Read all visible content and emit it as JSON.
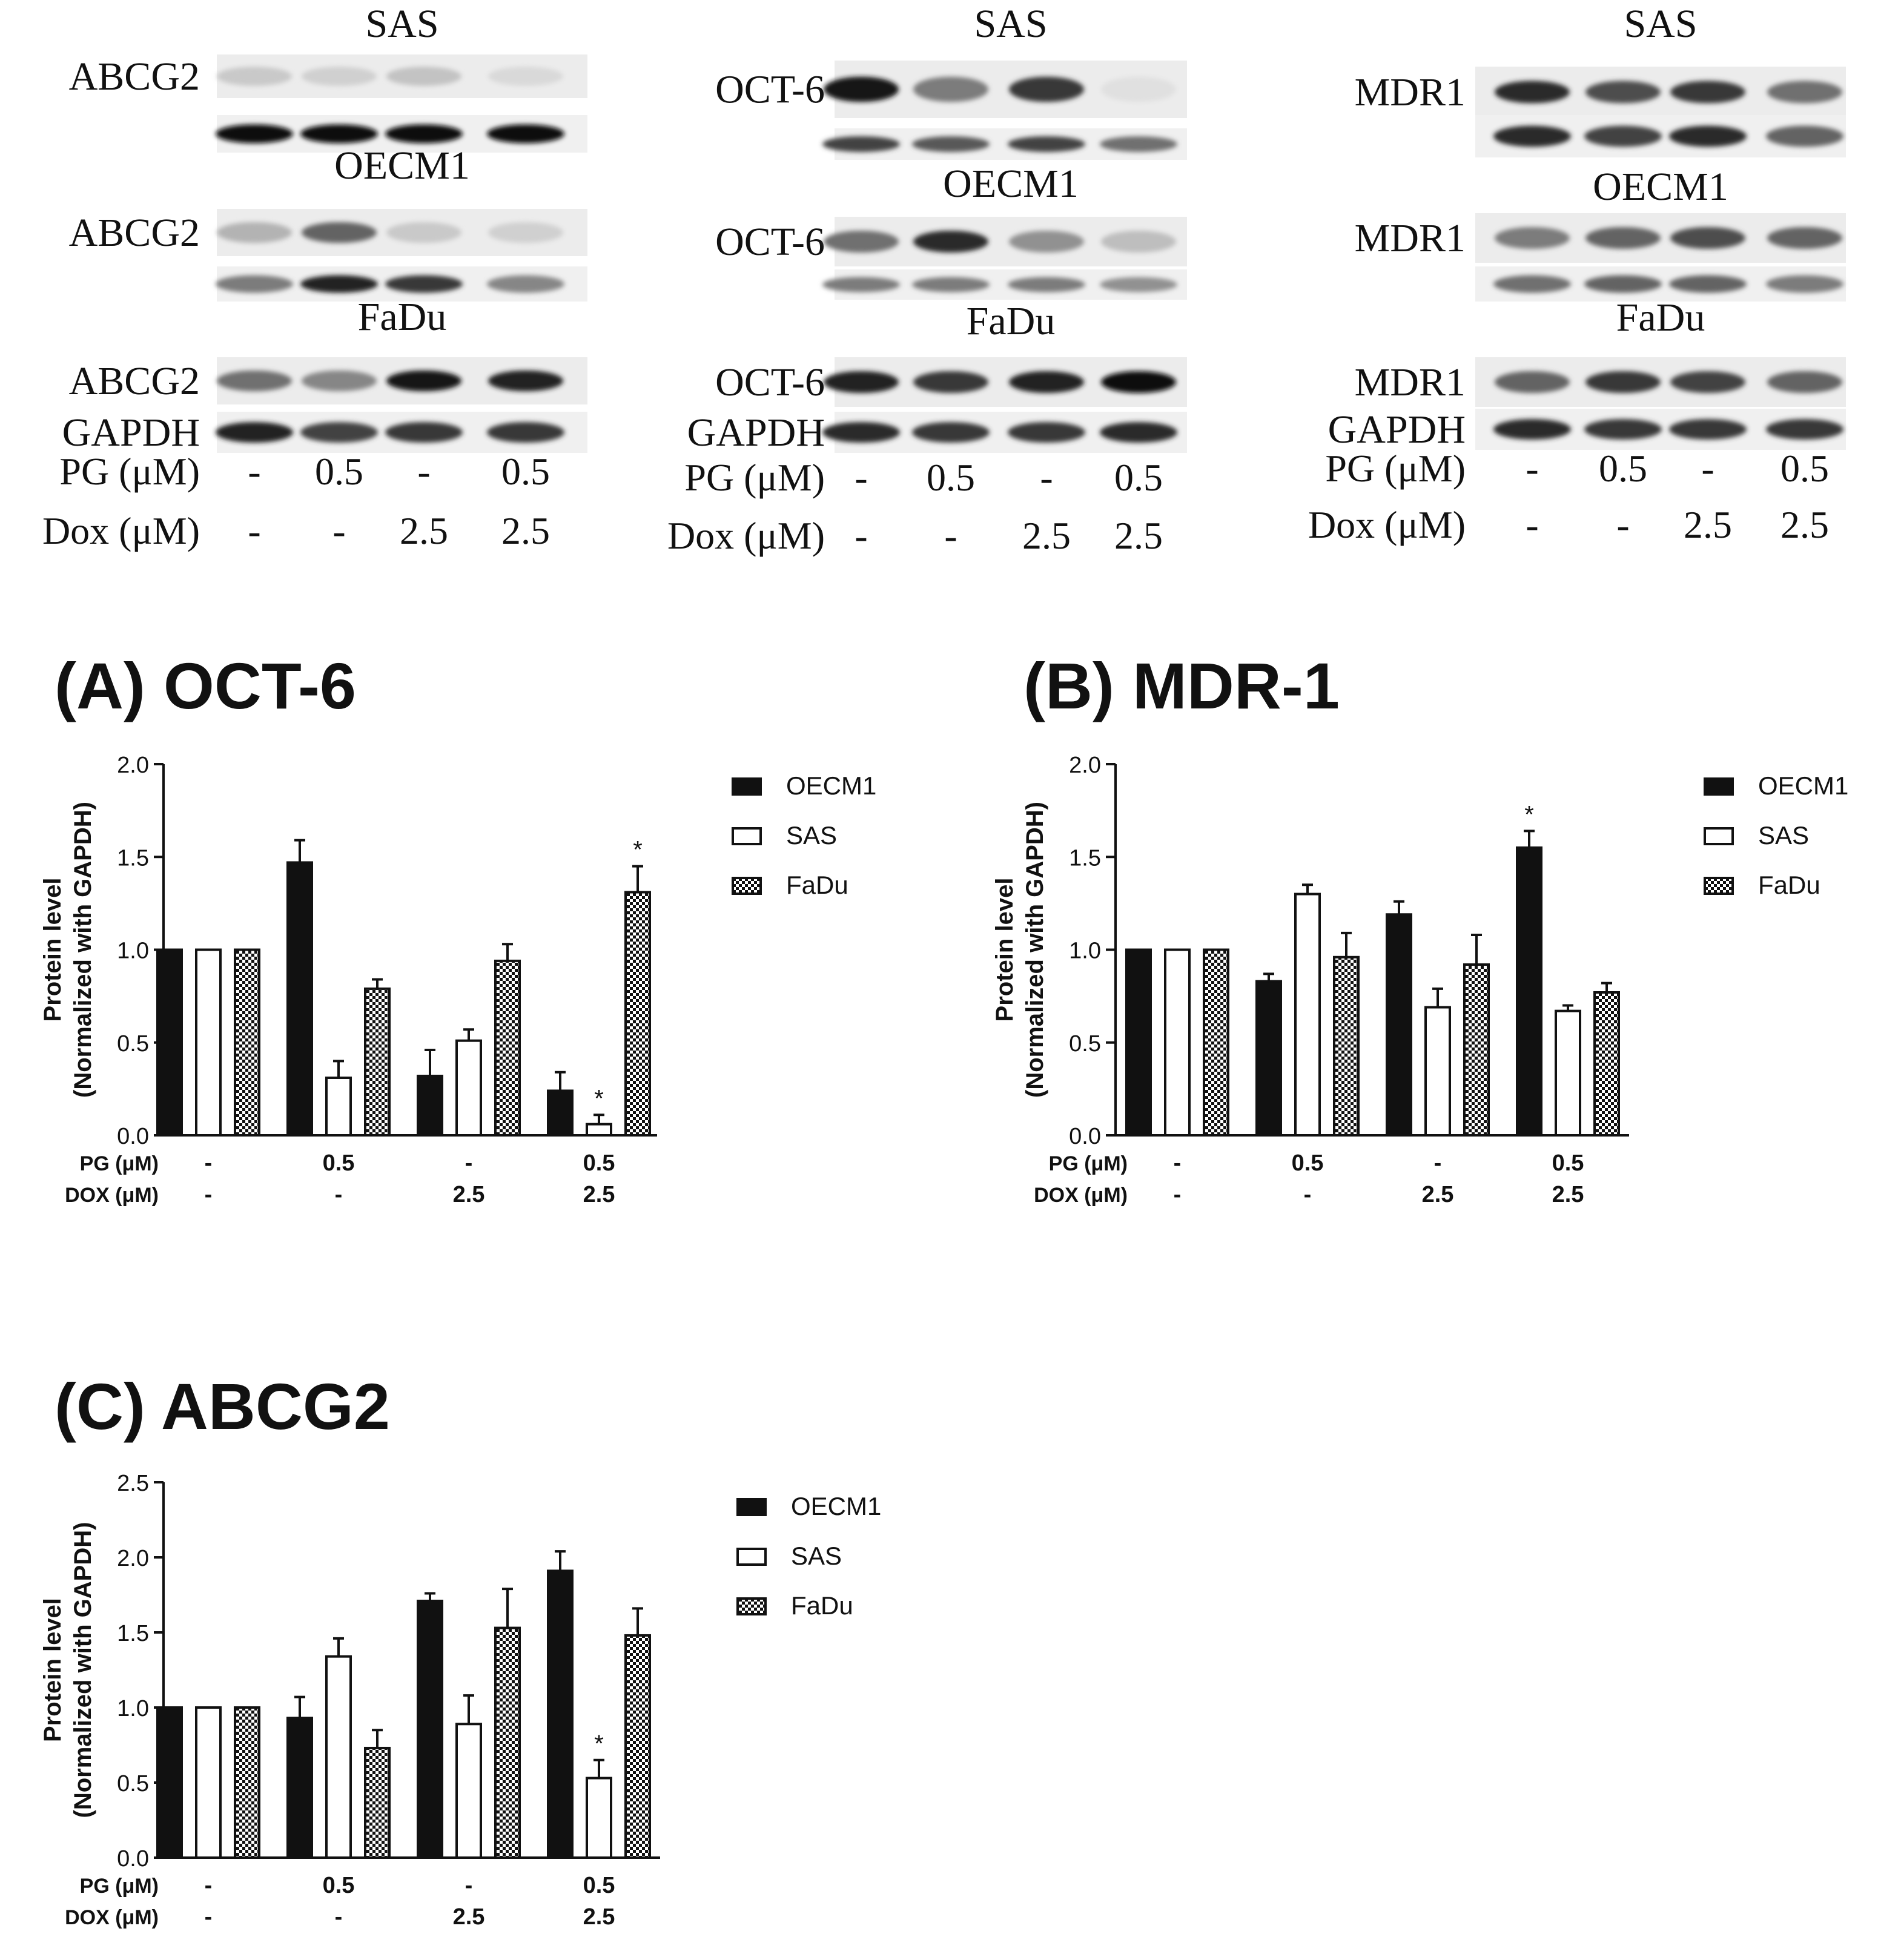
{
  "blots": [
    {
      "panels": [
        {
          "cell_line": "SAS",
          "protein": "ABCG2",
          "bands": [
            0.15,
            0.12,
            0.18,
            0.08
          ],
          "loading": [
            1.0,
            1.0,
            1.0,
            1.0
          ]
        },
        {
          "cell_line": "OECM1",
          "protein": "ABCG2",
          "bands": [
            0.25,
            0.6,
            0.15,
            0.12
          ],
          "loading": [
            0.5,
            0.9,
            0.8,
            0.45
          ]
        },
        {
          "cell_line": "FaDu",
          "protein": "ABCG2",
          "bands": [
            0.55,
            0.45,
            0.95,
            0.9
          ],
          "loading": [
            0.9,
            0.75,
            0.8,
            0.8
          ]
        }
      ],
      "loading_label": "GAPDH"
    },
    {
      "panels": [
        {
          "cell_line": "SAS",
          "protein": "OCT-6",
          "bands": [
            0.95,
            0.5,
            0.8,
            0.05
          ],
          "loading": [
            0.75,
            0.65,
            0.75,
            0.55
          ]
        },
        {
          "cell_line": "OECM1",
          "protein": "OCT-6",
          "bands": [
            0.55,
            0.85,
            0.4,
            0.2
          ],
          "loading": [
            0.5,
            0.5,
            0.5,
            0.4
          ]
        },
        {
          "cell_line": "FaDu",
          "protein": "OCT-6",
          "bands": [
            0.9,
            0.8,
            0.9,
            1.0
          ],
          "loading": [
            0.85,
            0.8,
            0.8,
            0.85
          ]
        }
      ],
      "loading_label": "GAPDH"
    },
    {
      "panels": [
        {
          "cell_line": "SAS",
          "protein": "MDR1",
          "bands": [
            0.85,
            0.7,
            0.8,
            0.55
          ],
          "loading": [
            0.85,
            0.75,
            0.85,
            0.6
          ]
        },
        {
          "cell_line": "OECM1",
          "protein": "MDR1",
          "bands": [
            0.5,
            0.6,
            0.7,
            0.6
          ],
          "loading": [
            0.55,
            0.6,
            0.6,
            0.5
          ]
        },
        {
          "cell_line": "FaDu",
          "protein": "MDR1",
          "bands": [
            0.6,
            0.8,
            0.75,
            0.6
          ],
          "loading": [
            0.85,
            0.8,
            0.8,
            0.8
          ]
        }
      ],
      "loading_label": "GAPDH"
    }
  ],
  "blot_treatments": {
    "pg_label": "PG (μM)",
    "dox_label": "Dox (μM)",
    "pg": [
      "-",
      "0.5",
      "-",
      "0.5"
    ],
    "dox": [
      "-",
      "-",
      "2.5",
      "2.5"
    ]
  },
  "chart_data": [
    {
      "type": "bar",
      "title": "(A) OCT-6",
      "ylabel_line1": "Protein level",
      "ylabel_line2": "(Normalized with GAPDH)",
      "ylim": [
        0,
        2.0
      ],
      "yticks": [
        "0.0",
        "0.5",
        "1.0",
        "1.5",
        "2.0"
      ],
      "row_labels": [
        "PG (μM)",
        "DOX (μM)"
      ],
      "pg": [
        "-",
        "0.5",
        "-",
        "0.5"
      ],
      "dox": [
        "-",
        "-",
        "2.5",
        "2.5"
      ],
      "series": [
        {
          "name": "OECM1",
          "values": [
            1.0,
            1.47,
            0.32,
            0.24
          ],
          "errors": [
            0,
            0.12,
            0.14,
            0.1
          ],
          "star": [
            false,
            false,
            false,
            false
          ]
        },
        {
          "name": "SAS",
          "values": [
            1.0,
            0.31,
            0.51,
            0.06
          ],
          "errors": [
            0,
            0.09,
            0.06,
            0.05
          ],
          "star": [
            false,
            false,
            false,
            true
          ]
        },
        {
          "name": "FaDu",
          "values": [
            1.0,
            0.79,
            0.94,
            1.31
          ],
          "errors": [
            0,
            0.05,
            0.09,
            0.14
          ],
          "star": [
            false,
            false,
            false,
            true
          ]
        }
      ]
    },
    {
      "type": "bar",
      "title": "(B) MDR-1",
      "ylabel_line1": "Protein level",
      "ylabel_line2": "(Normalized with GAPDH)",
      "ylim": [
        0,
        2.0
      ],
      "yticks": [
        "0.0",
        "0.5",
        "1.0",
        "1.5",
        "2.0"
      ],
      "row_labels": [
        "PG (μM)",
        "DOX (μM)"
      ],
      "pg": [
        "-",
        "0.5",
        "-",
        "0.5"
      ],
      "dox": [
        "-",
        "-",
        "2.5",
        "2.5"
      ],
      "series": [
        {
          "name": "OECM1",
          "values": [
            1.0,
            0.83,
            1.19,
            1.55
          ],
          "errors": [
            0,
            0.04,
            0.07,
            0.09
          ],
          "star": [
            false,
            false,
            false,
            true
          ]
        },
        {
          "name": "SAS",
          "values": [
            1.0,
            1.3,
            0.69,
            0.67
          ],
          "errors": [
            0,
            0.05,
            0.1,
            0.03
          ],
          "star": [
            false,
            false,
            false,
            false
          ]
        },
        {
          "name": "FaDu",
          "values": [
            1.0,
            0.96,
            0.92,
            0.77
          ],
          "errors": [
            0,
            0.13,
            0.16,
            0.05
          ],
          "star": [
            false,
            false,
            false,
            false
          ]
        }
      ]
    },
    {
      "type": "bar",
      "title": "(C) ABCG2",
      "ylabel_line1": "Protein level",
      "ylabel_line2": "(Normalized with GAPDH)",
      "ylim": [
        0,
        2.5
      ],
      "yticks": [
        "0.0",
        "0.5",
        "1.0",
        "1.5",
        "2.0",
        "2.5"
      ],
      "row_labels": [
        "PG (μM)",
        "DOX (μM)"
      ],
      "pg": [
        "-",
        "0.5",
        "-",
        "0.5"
      ],
      "dox": [
        "-",
        "-",
        "2.5",
        "2.5"
      ],
      "series": [
        {
          "name": "OECM1",
          "values": [
            1.0,
            0.93,
            1.71,
            1.91
          ],
          "errors": [
            0,
            0.14,
            0.05,
            0.13
          ],
          "star": [
            false,
            false,
            false,
            false
          ]
        },
        {
          "name": "SAS",
          "values": [
            1.0,
            1.34,
            0.89,
            0.53
          ],
          "errors": [
            0,
            0.12,
            0.19,
            0.12
          ],
          "star": [
            false,
            false,
            false,
            true
          ]
        },
        {
          "name": "FaDu",
          "values": [
            1.0,
            0.73,
            1.53,
            1.48
          ],
          "errors": [
            0,
            0.12,
            0.26,
            0.18
          ],
          "star": [
            false,
            false,
            false,
            false
          ]
        }
      ]
    }
  ],
  "significance_marker": "*"
}
